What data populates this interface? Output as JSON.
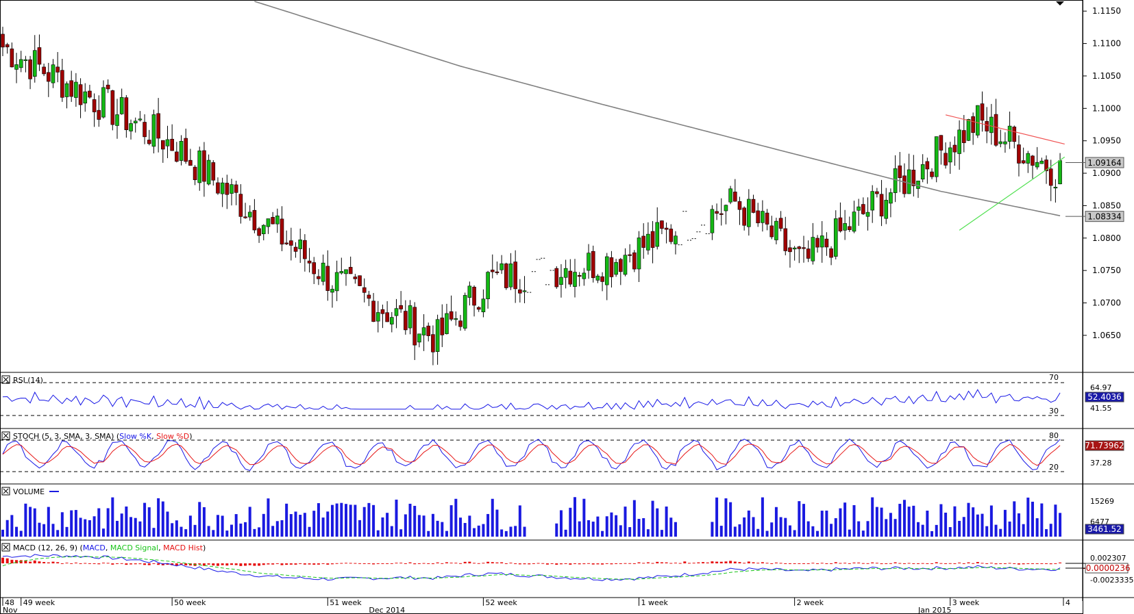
{
  "colors": {
    "up": "#14b814",
    "down": "#a00000",
    "rsi": "#1515e6",
    "stoch_k": "#1515e6",
    "stoch_d": "#e61515",
    "volume": "#1a1ae0",
    "macd": "#1515e6",
    "macd_signal": "#19c419",
    "macd_hist": "#e61010",
    "ma": "#808080",
    "resistance": "#f05050",
    "support": "#50e050",
    "price_tag_bg": "#c8c8c8",
    "value_tag_bg": "#1a1aa8"
  },
  "chart_data": {
    "type": "candlestick",
    "symbol_pair_price_axis": {
      "ylim": [
        1.0595,
        1.1165
      ],
      "ticks": [
        "1.1150",
        "1.1100",
        "1.1050",
        "1.1000",
        "1.0950",
        "1.0900",
        "1.0850",
        "1.0800",
        "1.0750",
        "1.0700",
        "1.0650"
      ],
      "tick_values": [
        1.115,
        1.11,
        1.105,
        1.1,
        1.095,
        1.09,
        1.085,
        1.08,
        1.075,
        1.07,
        1.065
      ],
      "current_price_label": "1.09164",
      "current_price": 1.09164,
      "ma_price_label": "1.08334",
      "ma_price": 1.08334
    },
    "anchors": {
      "x_index": [
        0,
        37,
        72,
        95,
        106,
        133,
        160,
        175,
        191,
        213,
        230
      ],
      "close": [
        1.1095,
        1.0945,
        1.0735,
        1.0645,
        1.0735,
        1.0765,
        1.0855,
        1.076,
        1.0855,
        1.098,
        1.0905
      ]
    },
    "candle_count": 232,
    "moving_average": {
      "x_index": [
        55,
        100,
        130,
        170,
        205,
        232
      ],
      "value": [
        1.1165,
        1.1065,
        1.1008,
        1.0935,
        1.0872,
        1.0833
      ]
    },
    "trendlines": [
      {
        "name": "resistance",
        "from": [
          206,
          1.099
        ],
        "to": [
          232,
          1.0945
        ]
      },
      {
        "name": "support",
        "from": [
          209,
          1.0812
        ],
        "to": [
          232,
          1.0925
        ]
      }
    ],
    "rsi": {
      "title": "RSI (14)",
      "levels": [
        "70",
        "30"
      ],
      "labels": [
        "64.97",
        "41.55"
      ],
      "current_label": "52.4036",
      "current": 52.4036
    },
    "stoch": {
      "title_prefix": "STOCH (5, 3, SMA, 3, SMA)",
      "k_label": "Slow %K",
      "d_label": "Slow %D",
      "levels": [
        "80",
        "20"
      ],
      "labels": [
        "37.28"
      ],
      "current_label": "71.73962",
      "current": 71.73962
    },
    "volume": {
      "title": "VOLUME",
      "labels": [
        "15269",
        "6477"
      ],
      "current_label": "3461.52",
      "current": 3461.52
    },
    "macd": {
      "title_prefix": "MACD (12, 26, 9)",
      "line_label": "MACD",
      "signal_label": "MACD Signal",
      "hist_label": "MACD Hist",
      "labels": [
        "0.002307",
        "-0.0023335"
      ],
      "current_label": "-0.0000236",
      "current": -2.36e-05
    },
    "week_labels": [
      {
        "text": "48",
        "x_index": 0
      },
      {
        "text": "49 week",
        "x_index": 4
      },
      {
        "text": "50 week",
        "x_index": 37
      },
      {
        "text": "51 week",
        "x_index": 71
      },
      {
        "text": "52 week",
        "x_index": 105
      },
      {
        "text": "1 week",
        "x_index": 139
      },
      {
        "text": "2 week",
        "x_index": 173
      },
      {
        "text": "3 week",
        "x_index": 207
      },
      {
        "text": "4",
        "x_index": 240
      }
    ],
    "month_labels": [
      {
        "text": "Nov",
        "x_index": 0
      },
      {
        "text": "Dec 2014",
        "x_index": 80
      },
      {
        "text": "Jan 2015",
        "x_index": 200
      }
    ]
  }
}
